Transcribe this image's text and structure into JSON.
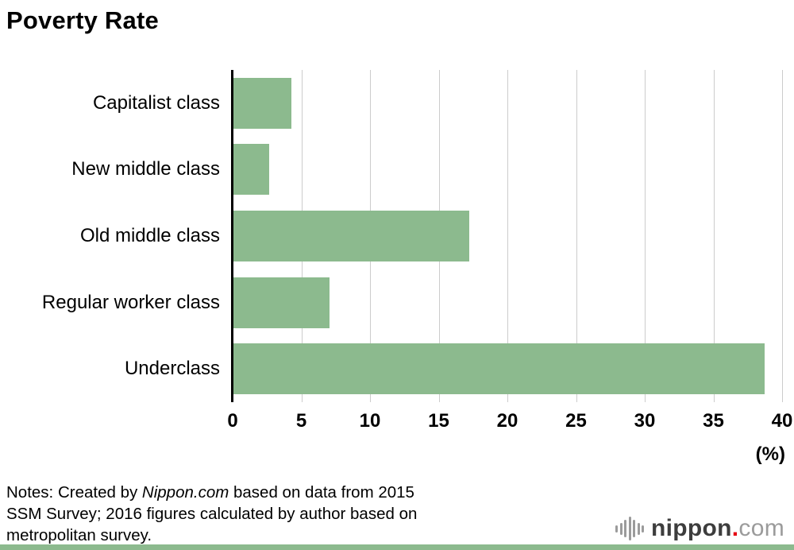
{
  "chart_data": {
    "type": "bar",
    "orientation": "horizontal",
    "title": "Poverty Rate",
    "categories": [
      "Capitalist class",
      "New middle class",
      "Old middle class",
      "Regular worker class",
      "Underclass"
    ],
    "values": [
      4.2,
      2.6,
      17.2,
      7.0,
      38.7
    ],
    "xlabel": "",
    "ylabel": "",
    "xlim": [
      0,
      40
    ],
    "xticks": [
      0,
      5,
      10,
      15,
      20,
      25,
      30,
      35,
      40
    ],
    "unit_label": "(%)",
    "grid": true,
    "legend": "none",
    "bar_color": "#8cba8e",
    "gridline_color": "#cccccc",
    "axis_color": "#000000"
  },
  "notes": {
    "line1_prefix": "Notes: Created by ",
    "line1_italic": "Nippon.com",
    "line1_suffix": " based on data from 2015",
    "line2": "SSM Survey; 2016 figures calculated by author based on",
    "line3": "metropolitan survey."
  },
  "footer_logo": {
    "icon": "soundwave-bars-icon",
    "icon_bars": [
      9,
      15,
      22,
      30,
      22,
      15,
      9
    ],
    "icon_color": "#9b9b9b",
    "name": "nippon",
    "dot": ".",
    "tld": "com",
    "name_color": "#3d3d3d",
    "dot_color": "#e60012",
    "tld_color": "#9b9b9b"
  },
  "footer_bar_color": "#8cba8e"
}
